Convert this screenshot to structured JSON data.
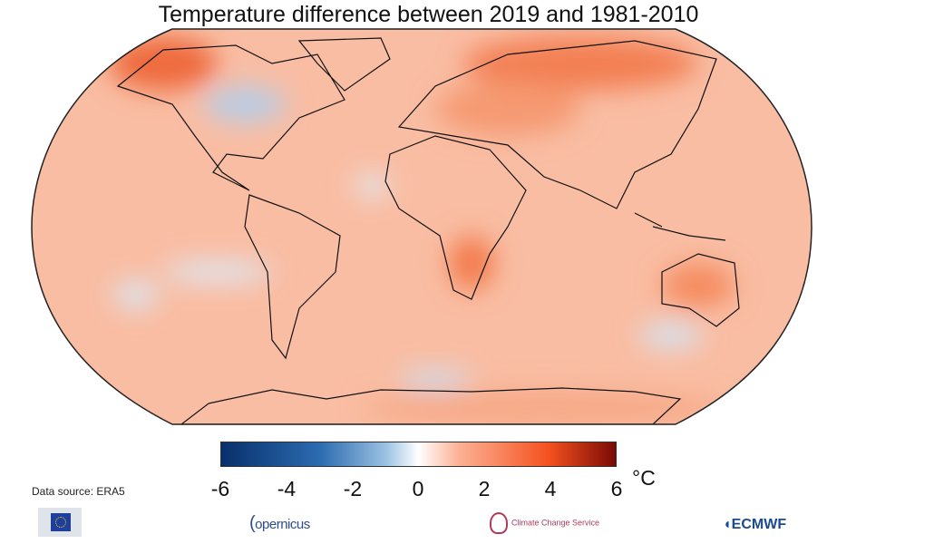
{
  "title": "Temperature difference between 2019 and 1981-2010",
  "colorbar": {
    "ticks": [
      "-6",
      "-4",
      "-2",
      "0",
      "2",
      "4",
      "6"
    ],
    "unit": "°C",
    "range": [
      -6,
      6
    ],
    "colors": [
      "#08306b",
      "#2c6bb0",
      "#9dc3e3",
      "#ffffff",
      "#fcb296",
      "#f4511e",
      "#7a0a05"
    ]
  },
  "map": {
    "projection": "Robinson",
    "dominant_color": "#f9b89c",
    "warm_color": "#f06a3c",
    "cool_color": "#c6d9ee",
    "coastline_color": "#111111"
  },
  "source": "Data source: ERA5",
  "logos": {
    "eu": "European Commission",
    "copernicus": "opernicus",
    "c3s": "Climate Change Service",
    "ecmwf": "ECMWF"
  }
}
